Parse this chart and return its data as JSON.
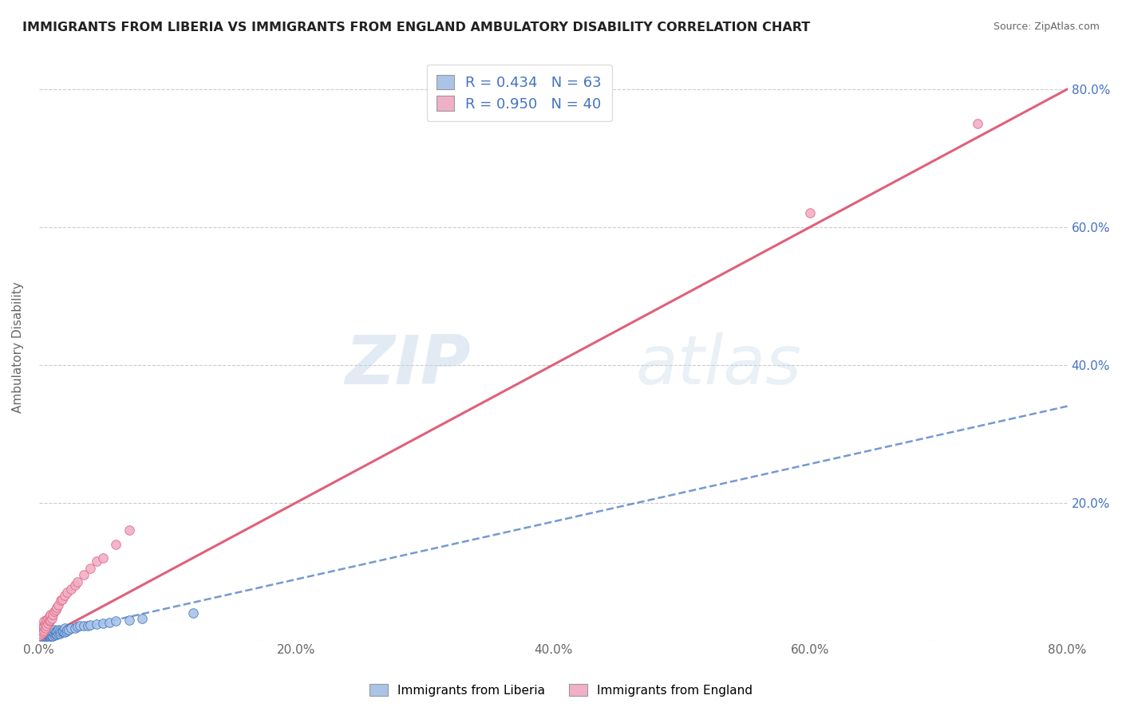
{
  "title": "IMMIGRANTS FROM LIBERIA VS IMMIGRANTS FROM ENGLAND AMBULATORY DISABILITY CORRELATION CHART",
  "source": "Source: ZipAtlas.com",
  "ylabel": "Ambulatory Disability",
  "xmin": 0.0,
  "xmax": 0.8,
  "ymin": 0.0,
  "ymax": 0.85,
  "yticks": [
    0.0,
    0.2,
    0.4,
    0.6,
    0.8
  ],
  "ytick_labels": [
    "",
    "20.0%",
    "40.0%",
    "60.0%",
    "80.0%"
  ],
  "xticks": [
    0.0,
    0.2,
    0.4,
    0.6,
    0.8
  ],
  "xtick_labels": [
    "0.0%",
    "20.0%",
    "40.0%",
    "60.0%",
    "80.0%"
  ],
  "liberia_R": 0.434,
  "liberia_N": 63,
  "england_R": 0.95,
  "england_N": 40,
  "liberia_color": "#aac4e8",
  "england_color": "#f0b0c8",
  "liberia_line_color": "#3a6fba",
  "england_line_color": "#e0607a",
  "watermark_zip": "ZIP",
  "watermark_atlas": "atlas",
  "background_color": "#ffffff",
  "grid_color": "#cccccc",
  "title_color": "#222222",
  "legend_R_color": "#4472c4",
  "liberia_scatter_x": [
    0.001,
    0.002,
    0.003,
    0.003,
    0.004,
    0.004,
    0.004,
    0.005,
    0.005,
    0.005,
    0.005,
    0.006,
    0.006,
    0.006,
    0.006,
    0.007,
    0.007,
    0.007,
    0.007,
    0.008,
    0.008,
    0.008,
    0.009,
    0.009,
    0.009,
    0.01,
    0.01,
    0.01,
    0.011,
    0.011,
    0.012,
    0.012,
    0.012,
    0.013,
    0.013,
    0.014,
    0.014,
    0.015,
    0.015,
    0.016,
    0.016,
    0.017,
    0.018,
    0.019,
    0.02,
    0.02,
    0.021,
    0.022,
    0.023,
    0.025,
    0.028,
    0.03,
    0.032,
    0.035,
    0.038,
    0.04,
    0.045,
    0.05,
    0.055,
    0.06,
    0.07,
    0.08,
    0.12
  ],
  "liberia_scatter_y": [
    0.005,
    0.004,
    0.006,
    0.008,
    0.003,
    0.005,
    0.01,
    0.004,
    0.006,
    0.009,
    0.012,
    0.005,
    0.007,
    0.01,
    0.015,
    0.006,
    0.008,
    0.011,
    0.014,
    0.005,
    0.008,
    0.013,
    0.006,
    0.009,
    0.014,
    0.006,
    0.01,
    0.015,
    0.007,
    0.012,
    0.008,
    0.011,
    0.016,
    0.009,
    0.013,
    0.009,
    0.014,
    0.01,
    0.016,
    0.01,
    0.015,
    0.012,
    0.013,
    0.014,
    0.012,
    0.018,
    0.014,
    0.016,
    0.016,
    0.018,
    0.018,
    0.02,
    0.021,
    0.022,
    0.022,
    0.023,
    0.024,
    0.025,
    0.026,
    0.028,
    0.03,
    0.032,
    0.04
  ],
  "england_scatter_x": [
    0.001,
    0.002,
    0.002,
    0.003,
    0.003,
    0.003,
    0.004,
    0.004,
    0.004,
    0.005,
    0.005,
    0.006,
    0.006,
    0.007,
    0.007,
    0.008,
    0.008,
    0.009,
    0.009,
    0.01,
    0.011,
    0.012,
    0.013,
    0.014,
    0.015,
    0.017,
    0.018,
    0.02,
    0.022,
    0.025,
    0.028,
    0.03,
    0.035,
    0.04,
    0.045,
    0.05,
    0.06,
    0.07,
    0.6,
    0.73
  ],
  "england_scatter_y": [
    0.008,
    0.01,
    0.015,
    0.012,
    0.018,
    0.022,
    0.015,
    0.02,
    0.028,
    0.018,
    0.025,
    0.022,
    0.03,
    0.025,
    0.032,
    0.028,
    0.035,
    0.03,
    0.038,
    0.032,
    0.038,
    0.042,
    0.045,
    0.048,
    0.052,
    0.058,
    0.06,
    0.065,
    0.07,
    0.075,
    0.08,
    0.085,
    0.095,
    0.105,
    0.115,
    0.12,
    0.14,
    0.16,
    0.62,
    0.75
  ],
  "england_line_x0": 0.0,
  "england_line_y0": 0.0,
  "england_line_x1": 0.8,
  "england_line_y1": 0.8,
  "liberia_line_x0": 0.0,
  "liberia_line_y0": 0.005,
  "liberia_line_x1": 0.8,
  "liberia_line_y1": 0.34
}
